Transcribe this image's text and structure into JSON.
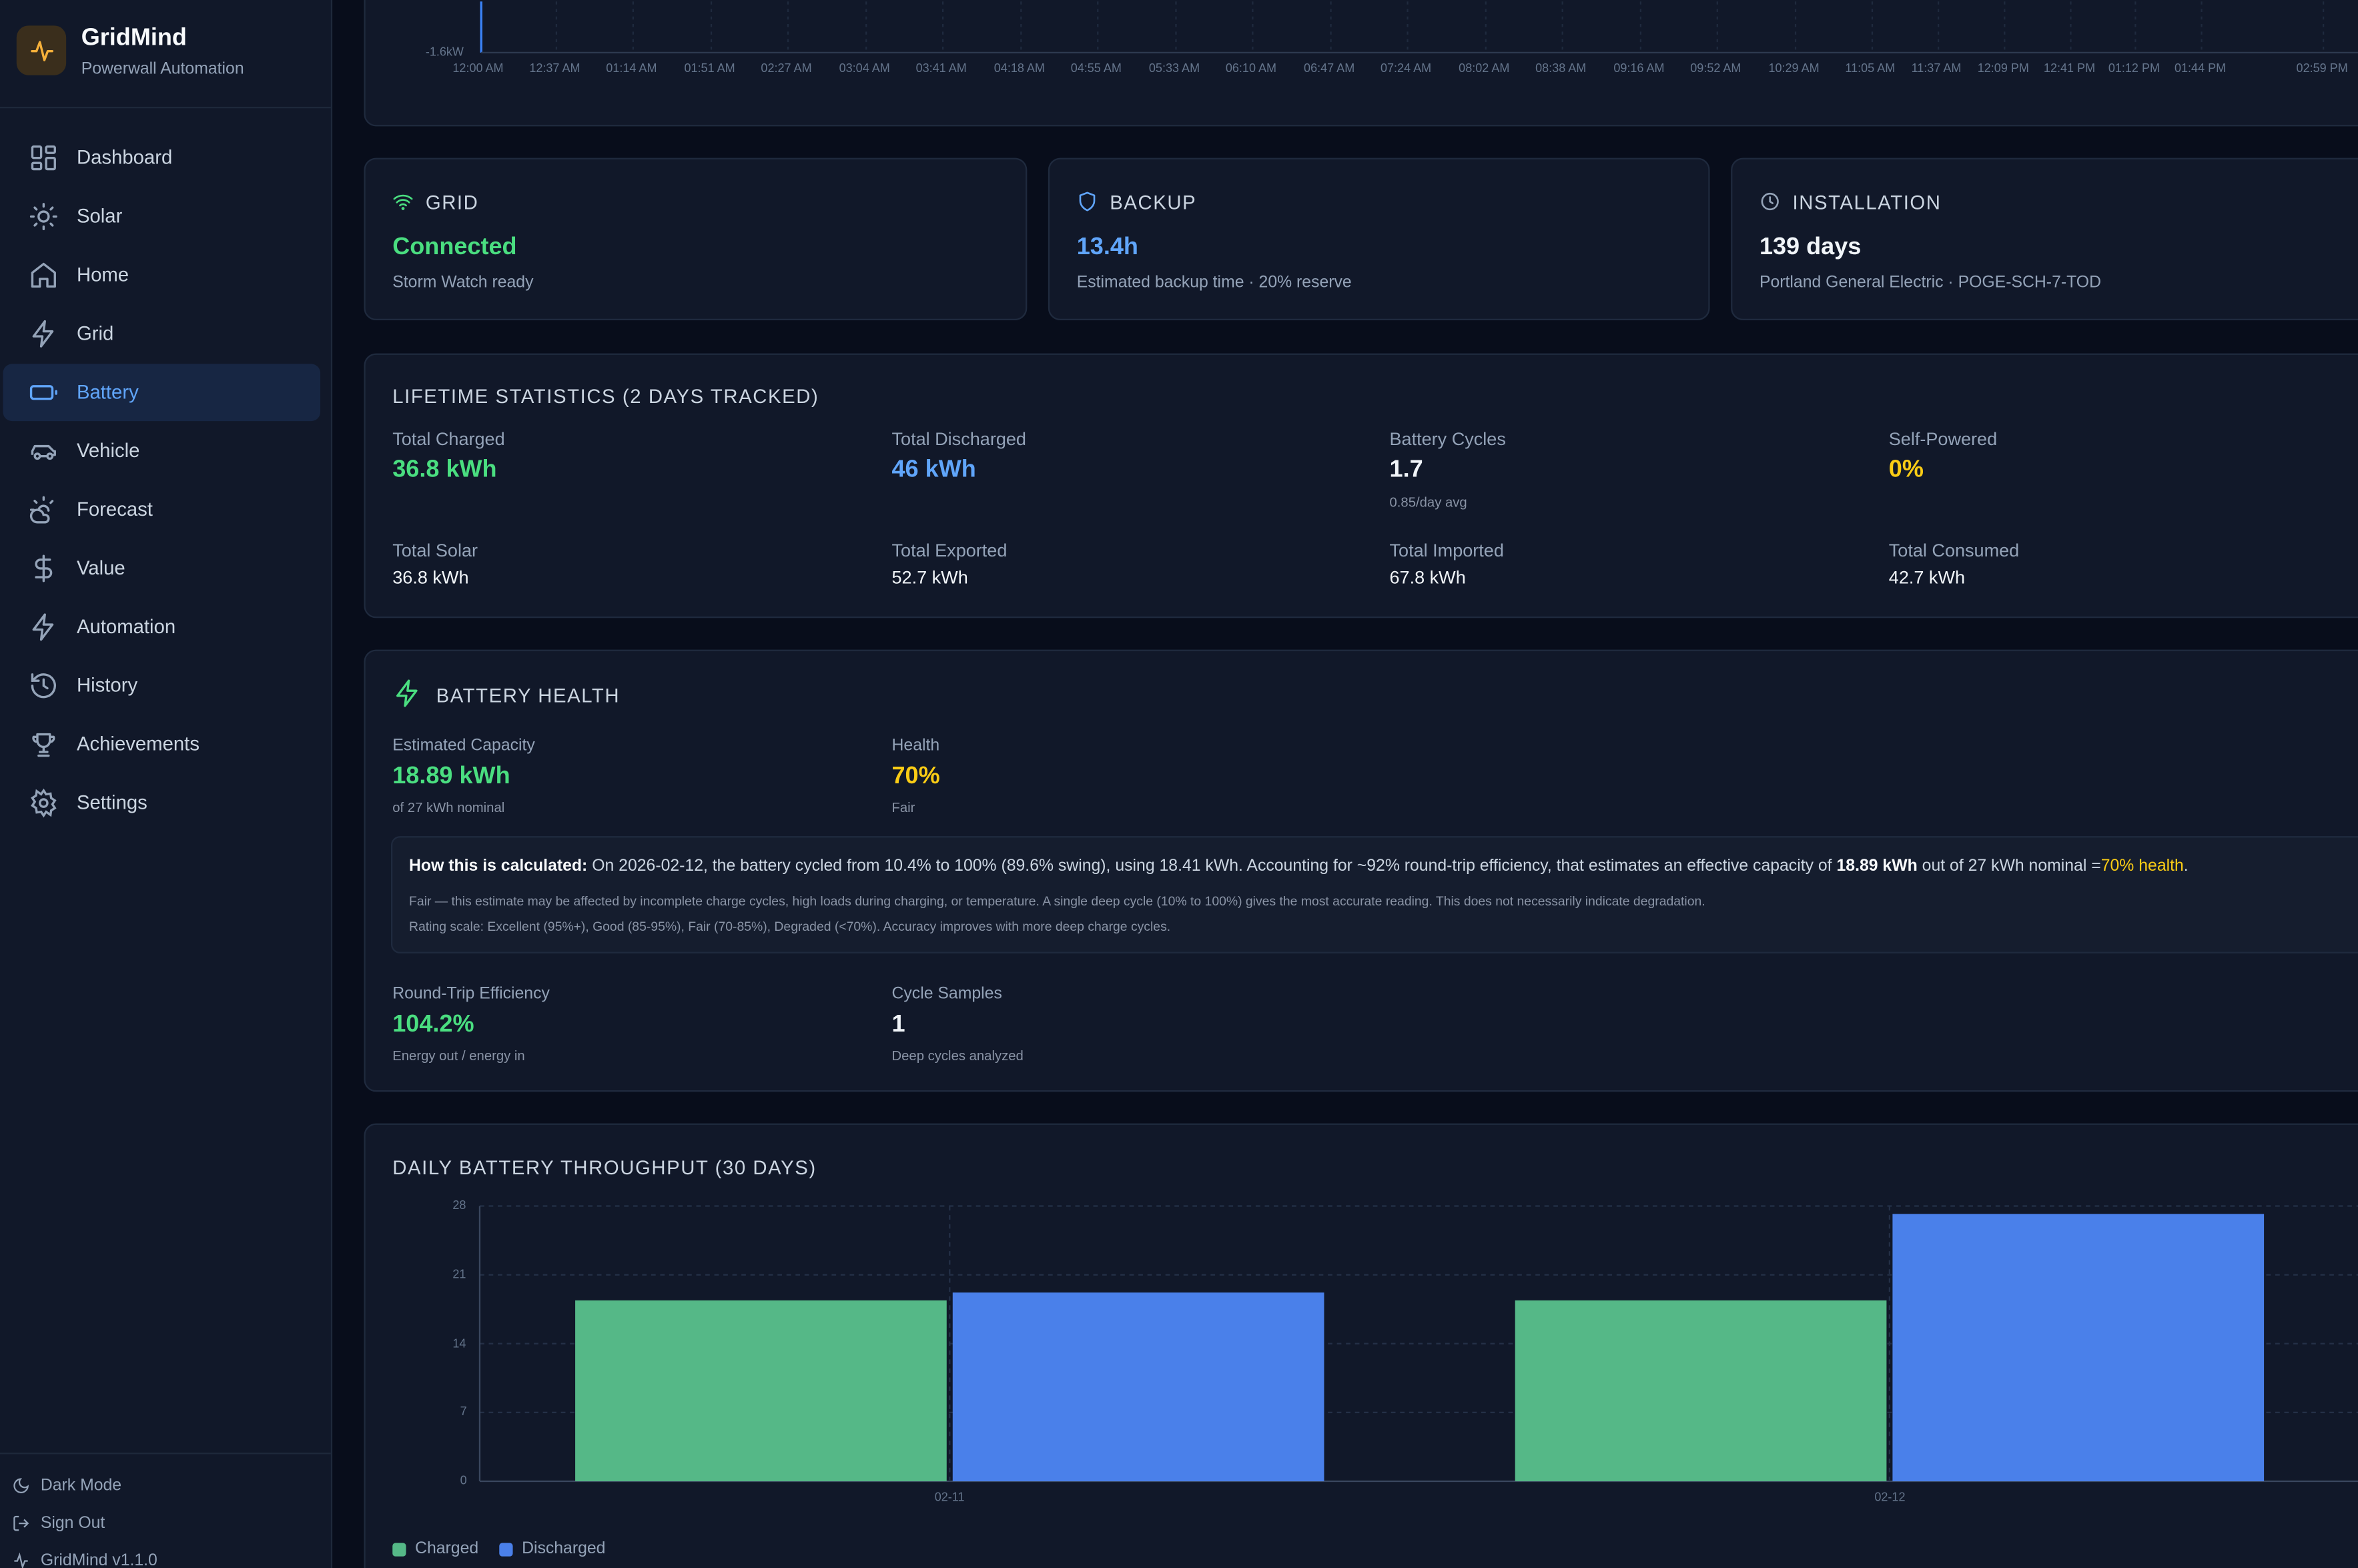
{
  "brand": {
    "title": "GridMind",
    "subtitle": "Powerwall Automation"
  },
  "colors": {
    "accent": "#60a5fa",
    "green": "#4ade80",
    "yellow": "#facc15",
    "charged": "#55b887",
    "discharged": "#4a80ea"
  },
  "nav": [
    {
      "label": "Dashboard",
      "icon": "dashboard-icon"
    },
    {
      "label": "Solar",
      "icon": "sun-icon"
    },
    {
      "label": "Home",
      "icon": "home-icon"
    },
    {
      "label": "Grid",
      "icon": "bolt-icon"
    },
    {
      "label": "Battery",
      "icon": "battery-icon",
      "active": true
    },
    {
      "label": "Vehicle",
      "icon": "car-icon"
    },
    {
      "label": "Forecast",
      "icon": "cloud-sun-icon"
    },
    {
      "label": "Value",
      "icon": "dollar-icon"
    },
    {
      "label": "Automation",
      "icon": "bolt-icon"
    },
    {
      "label": "History",
      "icon": "history-icon"
    },
    {
      "label": "Achievements",
      "icon": "trophy-icon"
    },
    {
      "label": "Settings",
      "icon": "gear-icon"
    }
  ],
  "footer": {
    "dark_mode": "Dark Mode",
    "sign_out": "Sign Out",
    "version": "GridMind v1.1.0"
  },
  "top_chart": {
    "y_label": "-1.6kW",
    "x_ticks": [
      "12:00 AM",
      "12:37 AM",
      "01:14 AM",
      "01:51 AM",
      "02:27 AM",
      "03:04 AM",
      "03:41 AM",
      "04:18 AM",
      "04:55 AM",
      "05:33 AM",
      "06:10 AM",
      "06:47 AM",
      "07:24 AM",
      "08:02 AM",
      "08:38 AM",
      "09:16 AM",
      "09:52 AM",
      "10:29 AM",
      "11:05 AM",
      "11:37 AM",
      "12:09 PM",
      "12:41 PM",
      "01:12 PM",
      "01:44 PM",
      "02:59 PM"
    ]
  },
  "grid_card": {
    "title": "GRID",
    "value": "Connected",
    "sub": "Storm Watch ready"
  },
  "backup_card": {
    "title": "BACKUP",
    "value": "13.4h",
    "sub": "Estimated backup time · 20% reserve"
  },
  "install_card": {
    "title": "INSTALLATION",
    "value": "139 days",
    "sub": "Portland General Electric · POGE-SCH-7-TOD"
  },
  "lifetime": {
    "title": "LIFETIME STATISTICS (2 DAYS TRACKED)",
    "total_charged_label": "Total Charged",
    "total_charged": "36.8 kWh",
    "total_discharged_label": "Total Discharged",
    "total_discharged": "46 kWh",
    "battery_cycles_label": "Battery Cycles",
    "battery_cycles": "1.7",
    "battery_cycles_sub": "0.85/day avg",
    "self_powered_label": "Self-Powered",
    "self_powered": "0%",
    "total_solar_label": "Total Solar",
    "total_solar": "36.8 kWh",
    "total_exported_label": "Total Exported",
    "total_exported": "52.7 kWh",
    "total_imported_label": "Total Imported",
    "total_imported": "67.8 kWh",
    "total_consumed_label": "Total Consumed",
    "total_consumed": "42.7 kWh"
  },
  "health": {
    "title": "BATTERY HEALTH",
    "capacity_label": "Estimated Capacity",
    "capacity": "18.89 kWh",
    "capacity_sub": "of 27 kWh nominal",
    "health_label": "Health",
    "health": "70%",
    "health_sub": "Fair",
    "calc_bold": "How this is calculated:",
    "calc_text": "On 2026-02-12, the battery cycled from 10.4% to 100% (89.6% swing), using 18.41 kWh. Accounting for ~92% round-trip efficiency, that estimates an effective capacity of",
    "calc_cap": "18.89 kWh",
    "calc_mid": "out of 27 kWh nominal =",
    "calc_health": "70% health",
    "calc_end": ".",
    "note1": "Fair — this estimate may be affected by incomplete charge cycles, high loads during charging, or temperature. A single deep cycle (10% to 100%) gives the most accurate reading. This does not necessarily indicate degradation.",
    "note2": "Rating scale: Excellent (95%+), Good (85-95%), Fair (70-85%), Degraded (<70%). Accuracy improves with more deep charge cycles.",
    "rte_label": "Round-Trip Efficiency",
    "rte": "104.2%",
    "rte_sub": "Energy out / energy in",
    "samples_label": "Cycle Samples",
    "samples": "1",
    "samples_sub": "Deep cycles analyzed"
  },
  "throughput": {
    "title": "DAILY BATTERY THROUGHPUT (30 DAYS)",
    "legend_charged": "Charged",
    "legend_discharged": "Discharged"
  },
  "chart_data": {
    "type": "bar",
    "categories": [
      "02-11",
      "02-12"
    ],
    "series": [
      {
        "name": "Charged",
        "values": [
          18.4,
          18.4
        ]
      },
      {
        "name": "Discharged",
        "values": [
          19.2,
          27.2
        ]
      }
    ],
    "yticks": [
      0,
      7,
      14,
      21,
      28
    ],
    "ylim": [
      0,
      28
    ],
    "grid": true,
    "legend": "bottom-left"
  }
}
